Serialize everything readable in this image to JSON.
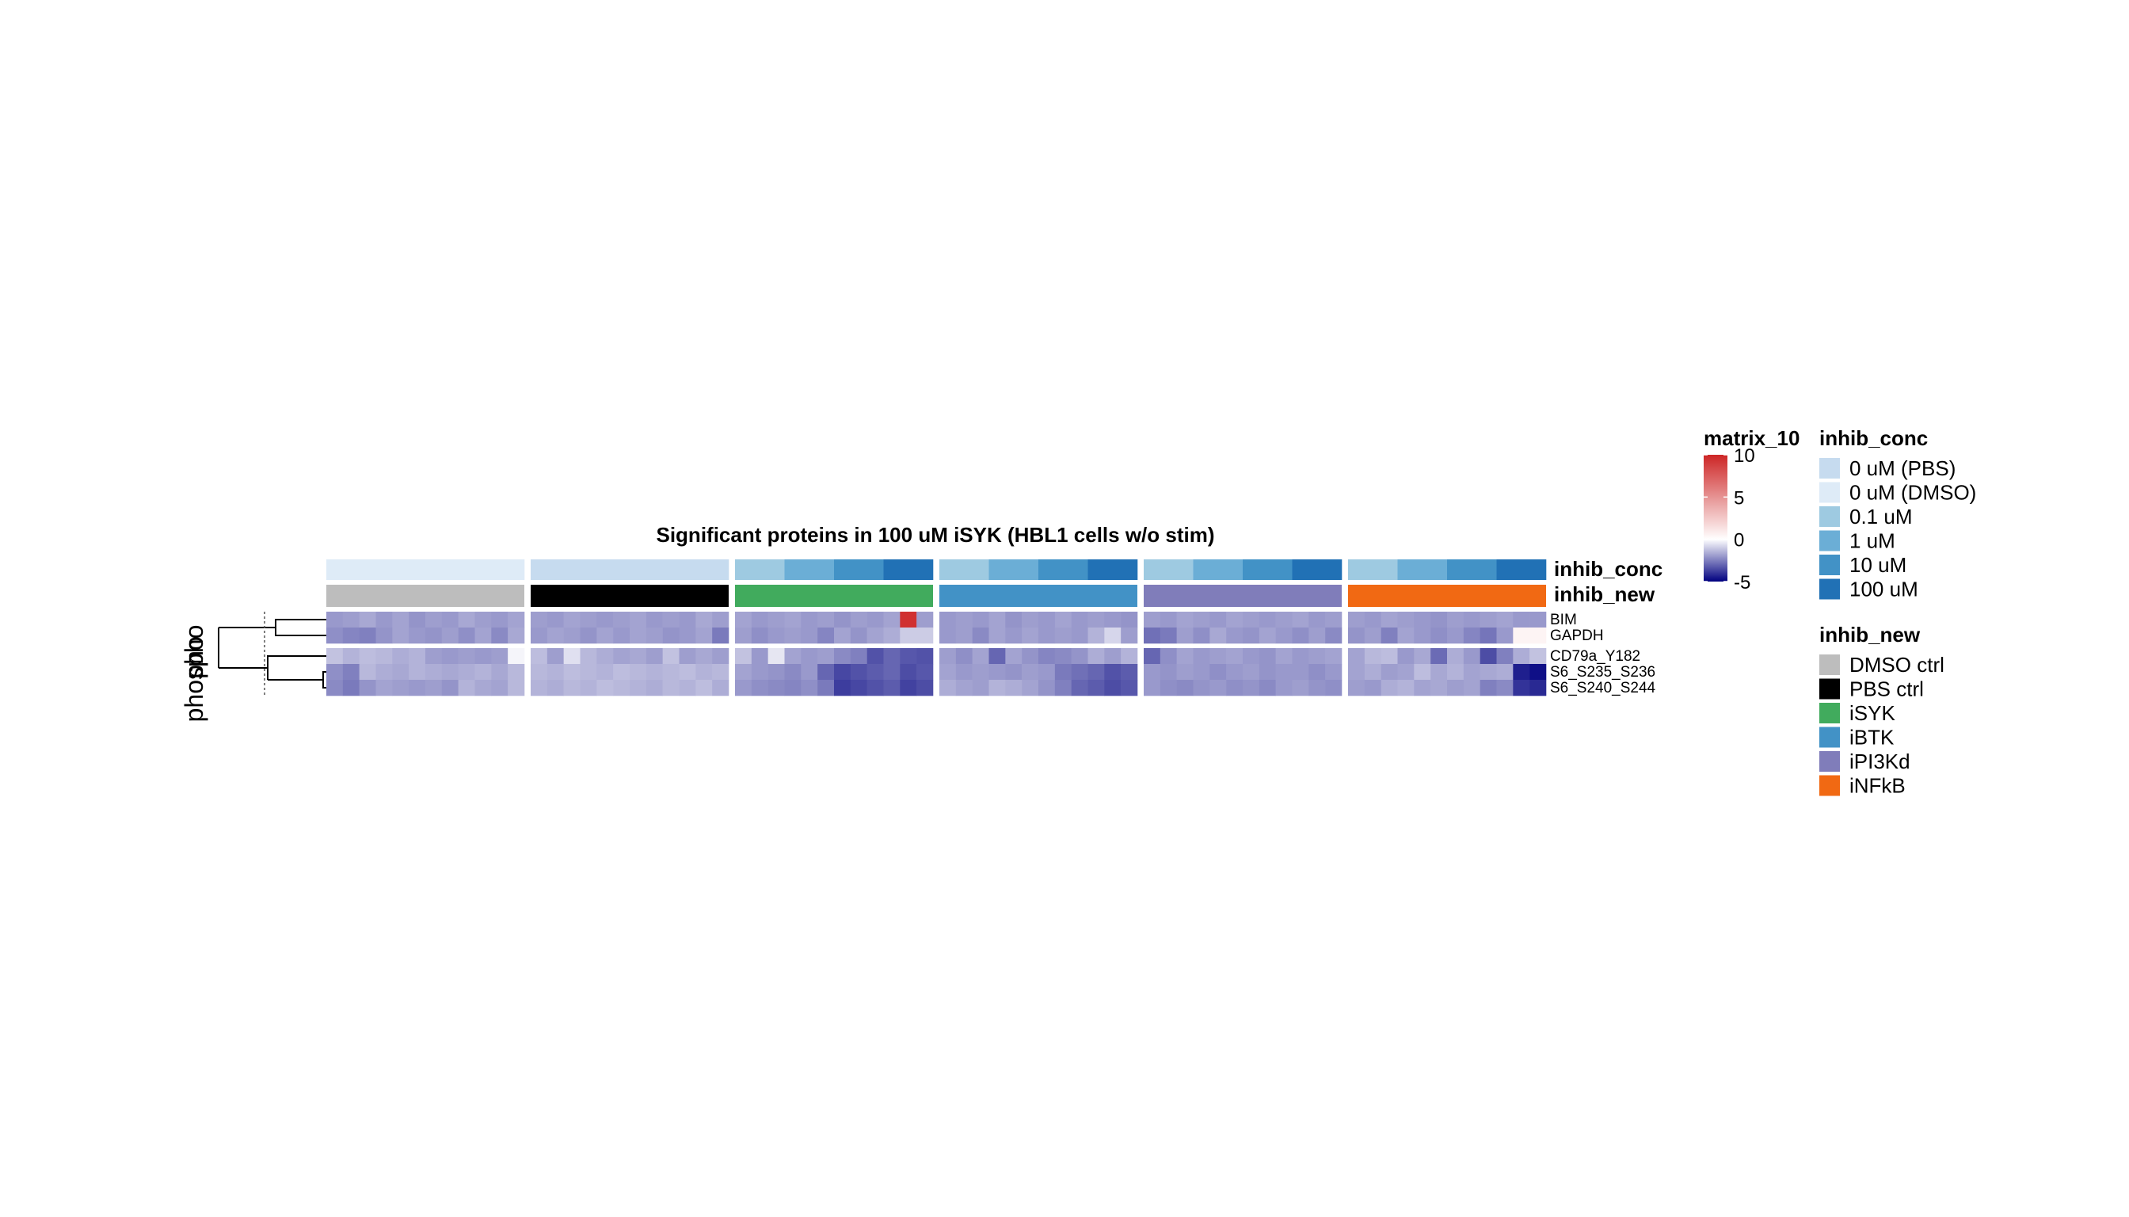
{
  "chart_data": {
    "type": "heatmap",
    "title": "Significant proteins in 100 uM iSYK (HBL1 cells w/o stim)",
    "row_split_labels": [
      "pho",
      "phospho"
    ],
    "column_groups": [
      {
        "name": "DMSO ctrl",
        "n": 12
      },
      {
        "name": "PBS ctrl",
        "n": 12
      },
      {
        "name": "iSYK",
        "n": 12
      },
      {
        "name": "iBTK",
        "n": 12
      },
      {
        "name": "iPI3Kd",
        "n": 12
      },
      {
        "name": "iNFkB",
        "n": 12
      }
    ],
    "annotations": {
      "inhib_conc": {
        "label": "inhib_conc",
        "per_group": [
          [
            "0 uM (DMSO)"
          ],
          [
            "0 uM (PBS)"
          ],
          [
            "0.1 uM",
            "1 uM",
            "10 uM",
            "100 uM"
          ],
          [
            "0.1 uM",
            "1 uM",
            "10 uM",
            "100 uM"
          ],
          [
            "0.1 uM",
            "1 uM",
            "10 uM",
            "100 uM"
          ],
          [
            "0.1 uM",
            "1 uM",
            "10 uM",
            "100 uM"
          ]
        ]
      },
      "inhib_new": {
        "label": "inhib_new",
        "per_group": [
          "DMSO ctrl",
          "PBS ctrl",
          "iSYK",
          "iBTK",
          "iPI3Kd",
          "iNFkB"
        ]
      }
    },
    "row_blocks": [
      {
        "rows": [
          "BIM",
          "GAPDH"
        ]
      },
      {
        "rows": [
          "CD79a_Y182",
          "S6_S235_S236",
          "S6_S240_S244"
        ]
      }
    ],
    "values": {
      "BIM": [
        [
          -2.0,
          -1.9,
          -1.7,
          -2.0,
          -1.8,
          -2.1,
          -1.9,
          -2.0,
          -1.7,
          -1.9,
          -2.0,
          -1.8
        ],
        [
          -1.9,
          -2.0,
          -1.8,
          -1.9,
          -2.0,
          -1.9,
          -1.8,
          -2.0,
          -1.9,
          -2.0,
          -1.7,
          -1.9
        ],
        [
          -1.8,
          -2.0,
          -1.9,
          -1.8,
          -2.0,
          -1.9,
          -2.1,
          -1.9,
          -2.0,
          -1.8,
          9.5,
          -1.9
        ],
        [
          -2.0,
          -1.9,
          -2.0,
          -1.8,
          -2.1,
          -1.9,
          -2.0,
          -1.8,
          -2.0,
          -1.9,
          -2.0,
          -2.1
        ],
        [
          -1.9,
          -2.0,
          -1.8,
          -1.9,
          -2.0,
          -1.8,
          -1.9,
          -2.0,
          -1.9,
          -1.8,
          -2.0,
          -1.9
        ],
        [
          -1.9,
          -2.0,
          -1.8,
          -1.9,
          -2.0,
          -2.1,
          -1.9,
          -2.0,
          -1.9,
          -1.8,
          -2.0,
          -2.0
        ]
      ],
      "GAPDH": [
        [
          -2.2,
          -2.4,
          -2.5,
          -2.1,
          -1.8,
          -2.0,
          -2.1,
          -1.9,
          -2.2,
          -1.8,
          -2.3,
          -1.7
        ],
        [
          -2.0,
          -1.8,
          -1.9,
          -2.1,
          -1.8,
          -2.0,
          -1.8,
          -1.9,
          -2.1,
          -2.0,
          -1.8,
          -2.6
        ],
        [
          -1.9,
          -2.2,
          -2.0,
          -1.9,
          -2.0,
          -2.4,
          -1.8,
          -2.1,
          -1.8,
          -1.6,
          -1.0,
          -1.0
        ],
        [
          -2.0,
          -1.9,
          -2.3,
          -1.8,
          -2.0,
          -1.8,
          -2.0,
          -1.9,
          -2.0,
          -1.5,
          -0.8,
          -1.9
        ],
        [
          -2.8,
          -2.6,
          -1.9,
          -2.2,
          -1.7,
          -2.0,
          -2.1,
          -1.8,
          -2.0,
          -2.2,
          -1.9,
          -2.3
        ],
        [
          -2.1,
          -1.9,
          -2.5,
          -1.8,
          -2.0,
          -2.2,
          -2.0,
          -2.4,
          -2.7,
          -2.0,
          0.5,
          0.5
        ]
      ],
      "CD79a_Y182": [
        [
          -1.2,
          -1.5,
          -1.3,
          -1.4,
          -1.6,
          -1.5,
          -1.9,
          -2.0,
          -1.9,
          -2.0,
          -1.9,
          -0.2
        ],
        [
          -1.3,
          -1.9,
          -0.6,
          -1.4,
          -1.6,
          -1.8,
          -1.7,
          -1.9,
          -1.2,
          -1.9,
          -1.7,
          -1.9
        ],
        [
          -1.2,
          -2.0,
          -0.5,
          -1.8,
          -2.0,
          -1.9,
          -2.3,
          -2.5,
          -3.4,
          -3.0,
          -3.3,
          -3.4
        ],
        [
          -1.9,
          -2.2,
          -1.8,
          -3.0,
          -1.8,
          -2.1,
          -2.4,
          -2.3,
          -2.1,
          -1.6,
          -1.9,
          -1.5
        ],
        [
          -3.0,
          -2.2,
          -1.8,
          -2.0,
          -1.9,
          -1.8,
          -2.0,
          -2.1,
          -1.8,
          -2.0,
          -1.9,
          -1.8
        ],
        [
          -1.8,
          -1.4,
          -1.3,
          -2.0,
          -1.7,
          -2.9,
          -1.6,
          -2.0,
          -3.5,
          -2.5,
          -1.6,
          -1.2
        ]
      ],
      "S6_S235_S236": [
        [
          -2.2,
          -2.5,
          -1.4,
          -1.6,
          -1.7,
          -1.5,
          -1.6,
          -1.7,
          -1.6,
          -1.5,
          -1.7,
          -1.4
        ],
        [
          -1.4,
          -1.5,
          -1.3,
          -1.4,
          -1.5,
          -1.3,
          -1.4,
          -1.5,
          -1.4,
          -1.3,
          -1.5,
          -1.4
        ],
        [
          -1.8,
          -2.0,
          -2.1,
          -2.3,
          -2.0,
          -3.0,
          -3.6,
          -3.4,
          -3.2,
          -3.0,
          -3.5,
          -3.3
        ],
        [
          -1.8,
          -2.0,
          -1.9,
          -2.0,
          -2.1,
          -1.9,
          -2.0,
          -2.6,
          -2.8,
          -3.0,
          -3.4,
          -3.2
        ],
        [
          -2.0,
          -2.1,
          -1.9,
          -2.0,
          -2.2,
          -2.0,
          -1.9,
          -2.1,
          -2.0,
          -2.0,
          -2.2,
          -2.0
        ],
        [
          -1.8,
          -1.6,
          -1.9,
          -1.8,
          -1.3,
          -1.7,
          -1.5,
          -1.8,
          -1.7,
          -1.6,
          -4.4,
          -4.7
        ]
      ],
      "S6_S240_S244": [
        [
          -2.3,
          -2.6,
          -2.1,
          -1.8,
          -1.9,
          -2.0,
          -1.9,
          -2.1,
          -1.5,
          -1.7,
          -1.8,
          -1.4
        ],
        [
          -1.5,
          -1.6,
          -1.4,
          -1.5,
          -1.3,
          -1.4,
          -1.5,
          -1.6,
          -1.4,
          -1.5,
          -1.3,
          -1.6
        ],
        [
          -2.0,
          -2.2,
          -2.3,
          -2.4,
          -2.2,
          -2.6,
          -3.8,
          -3.6,
          -3.4,
          -3.2,
          -3.7,
          -3.5
        ],
        [
          -1.6,
          -1.8,
          -1.9,
          -1.5,
          -1.6,
          -1.8,
          -2.1,
          -2.5,
          -3.0,
          -3.2,
          -3.5,
          -3.3
        ],
        [
          -2.0,
          -2.2,
          -2.3,
          -2.1,
          -2.0,
          -2.2,
          -2.1,
          -2.3,
          -2.0,
          -1.9,
          -2.1,
          -2.2
        ],
        [
          -1.9,
          -2.0,
          -1.6,
          -1.5,
          -1.8,
          -1.7,
          -1.9,
          -1.8,
          -2.5,
          -2.3,
          -4.0,
          -4.2
        ]
      ]
    },
    "dendrogram_rows_order": [
      "BIM",
      "GAPDH",
      "CD79a_Y182",
      "S6_S235_S236",
      "S6_S240_S244"
    ],
    "color_scale": {
      "name": "matrix_10",
      "ticks": [
        10,
        5,
        0,
        -5
      ],
      "range": [
        -5,
        10
      ],
      "colors": {
        "low": "#00007f",
        "mid": "#ffffff",
        "high": "#cd2626"
      }
    },
    "legends": {
      "inhib_conc": {
        "title": "inhib_conc",
        "items": [
          {
            "label": "0 uM (PBS)",
            "color": "#c6dbef"
          },
          {
            "label": "0 uM (DMSO)",
            "color": "#deebf7"
          },
          {
            "label": "0.1 uM",
            "color": "#9ecae1"
          },
          {
            "label": "1 uM",
            "color": "#6baed6"
          },
          {
            "label": "10 uM",
            "color": "#4292c6"
          },
          {
            "label": "100 uM",
            "color": "#2171b5"
          }
        ]
      },
      "inhib_new": {
        "title": "inhib_new",
        "items": [
          {
            "label": "DMSO ctrl",
            "color": "#bdbdbd"
          },
          {
            "label": "PBS ctrl",
            "color": "#000000"
          },
          {
            "label": "iSYK",
            "color": "#41ab5d"
          },
          {
            "label": "iBTK",
            "color": "#4292c6"
          },
          {
            "label": "iPI3Kd",
            "color": "#807dba"
          },
          {
            "label": "iNFkB",
            "color": "#f16913"
          }
        ]
      }
    }
  }
}
